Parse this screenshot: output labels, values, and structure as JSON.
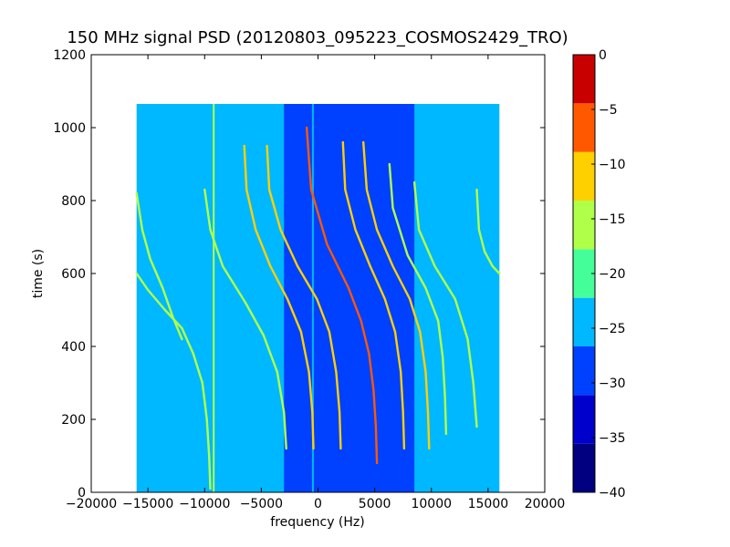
{
  "chart_data": {
    "type": "heatmap",
    "title": "150 MHz signal PSD (20120803_095223_COSMOS2429_TRO)",
    "xlabel": "frequency (Hz)",
    "ylabel": "time (s)",
    "xlim": [
      -20000,
      20000
    ],
    "ylim": [
      0,
      1200
    ],
    "xticks": [
      -20000,
      -15000,
      -10000,
      -5000,
      0,
      5000,
      10000,
      15000,
      20000
    ],
    "xtick_labels": [
      "−20000",
      "−15000",
      "−10000",
      "−5000",
      "0",
      "5000",
      "10000",
      "15000",
      "20000"
    ],
    "yticks": [
      0,
      200,
      400,
      600,
      800,
      1000,
      1200
    ],
    "ytick_labels": [
      "0",
      "200",
      "400",
      "600",
      "800",
      "1000",
      "1200"
    ],
    "data_extent": {
      "x": [
        -16000,
        16000
      ],
      "y": [
        0,
        1065
      ]
    },
    "background_level": -22.5,
    "central_band": {
      "x": [
        -3000,
        8500
      ],
      "level": -27.5
    },
    "colorbar": {
      "range": [
        -40,
        0
      ],
      "ticks": [
        0,
        -5,
        -10,
        -15,
        -20,
        -25,
        -30,
        -35,
        -40
      ],
      "tick_labels": [
        "0",
        "−5",
        "−10",
        "−15",
        "−20",
        "−25",
        "−30",
        "−35",
        "−40"
      ],
      "colors": [
        "#000080",
        "#0000cc",
        "#0040ff",
        "#00b8ff",
        "#44ff99",
        "#b0ff48",
        "#ffd000",
        "#ff5800",
        "#c80000"
      ]
    },
    "vertical_lines": [
      {
        "x": -9200,
        "y": [
          0,
          1065
        ],
        "level": -15
      },
      {
        "x": -450,
        "y": [
          0,
          1065
        ],
        "level": -22.5
      }
    ],
    "doppler_tracks": [
      {
        "center": -9000,
        "level": -15,
        "points": [
          [
            -16000,
            600
          ],
          [
            -15000,
            555
          ],
          [
            -13500,
            500
          ],
          [
            -12000,
            450
          ],
          [
            -11000,
            380
          ],
          [
            -10200,
            300
          ],
          [
            -9800,
            200
          ],
          [
            -9600,
            100
          ],
          [
            -9500,
            10
          ]
        ]
      },
      {
        "center": -15000,
        "level": -17.5,
        "points": [
          [
            -16000,
            820
          ],
          [
            -15500,
            720
          ],
          [
            -14800,
            640
          ],
          [
            -13700,
            560
          ],
          [
            -12800,
            480
          ],
          [
            -12000,
            420
          ]
        ]
      },
      {
        "center": -3000,
        "level": -15,
        "points": [
          [
            -10000,
            830
          ],
          [
            -9500,
            720
          ],
          [
            -8400,
            620
          ],
          [
            -6400,
            520
          ],
          [
            -4800,
            430
          ],
          [
            -3600,
            330
          ],
          [
            -3000,
            220
          ],
          [
            -2800,
            120
          ]
        ]
      },
      {
        "center": -1000,
        "level": -10,
        "points": [
          [
            -6500,
            950
          ],
          [
            -6300,
            830
          ],
          [
            -5500,
            720
          ],
          [
            -4200,
            620
          ],
          [
            -2700,
            530
          ],
          [
            -1500,
            440
          ],
          [
            -800,
            330
          ],
          [
            -500,
            220
          ],
          [
            -400,
            120
          ]
        ]
      },
      {
        "center": 100,
        "level": -10,
        "points": [
          [
            -4500,
            950
          ],
          [
            -4300,
            830
          ],
          [
            -3300,
            720
          ],
          [
            -1800,
            620
          ],
          [
            -100,
            530
          ],
          [
            1000,
            440
          ],
          [
            1600,
            330
          ],
          [
            1900,
            220
          ],
          [
            2000,
            120
          ]
        ]
      },
      {
        "center": 2500,
        "level": -5,
        "points": [
          [
            -1000,
            1000
          ],
          [
            -600,
            830
          ],
          [
            800,
            680
          ],
          [
            2700,
            560
          ],
          [
            3800,
            470
          ],
          [
            4500,
            380
          ],
          [
            4900,
            280
          ],
          [
            5100,
            180
          ],
          [
            5200,
            80
          ]
        ]
      },
      {
        "center": 4300,
        "level": -10,
        "points": [
          [
            2200,
            960
          ],
          [
            2400,
            830
          ],
          [
            3300,
            720
          ],
          [
            4600,
            620
          ],
          [
            5900,
            530
          ],
          [
            6800,
            440
          ],
          [
            7300,
            330
          ],
          [
            7500,
            220
          ],
          [
            7600,
            120
          ]
        ]
      },
      {
        "center": 6000,
        "level": -10,
        "points": [
          [
            4000,
            960
          ],
          [
            4300,
            830
          ],
          [
            5200,
            720
          ],
          [
            6600,
            620
          ],
          [
            8100,
            530
          ],
          [
            9000,
            440
          ],
          [
            9500,
            330
          ],
          [
            9700,
            220
          ],
          [
            9800,
            120
          ]
        ]
      },
      {
        "center": 7800,
        "level": -15,
        "points": [
          [
            6300,
            900
          ],
          [
            6600,
            780
          ],
          [
            7900,
            650
          ],
          [
            9500,
            560
          ],
          [
            10600,
            470
          ],
          [
            11000,
            370
          ],
          [
            11200,
            260
          ],
          [
            11300,
            160
          ]
        ]
      },
      {
        "center": 9500,
        "level": -15,
        "points": [
          [
            8500,
            850
          ],
          [
            8900,
            720
          ],
          [
            10300,
            620
          ],
          [
            12100,
            530
          ],
          [
            13200,
            420
          ],
          [
            13700,
            300
          ],
          [
            14000,
            180
          ]
        ]
      },
      {
        "center": 15000,
        "level": -17.5,
        "points": [
          [
            14000,
            830
          ],
          [
            14200,
            720
          ],
          [
            14700,
            660
          ],
          [
            15400,
            620
          ],
          [
            16000,
            600
          ]
        ]
      }
    ]
  }
}
